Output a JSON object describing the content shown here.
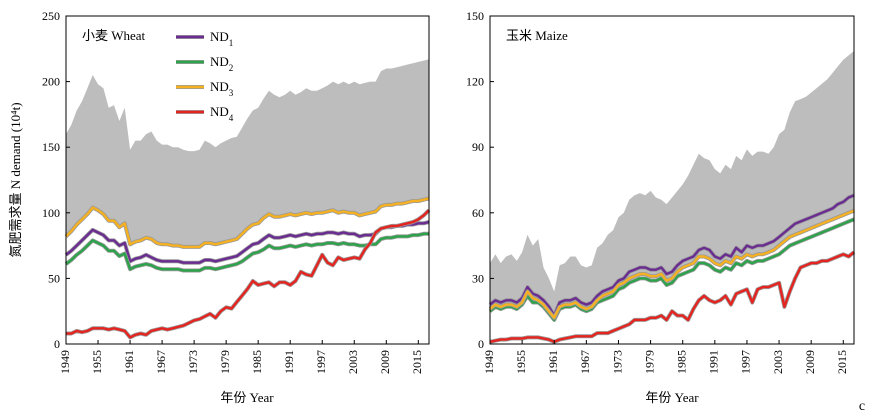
{
  "figure": {
    "corner_label": "c"
  },
  "chart_data": [
    {
      "type": "area",
      "title": "小麦 Wheat",
      "xlabel": "年份 Year",
      "ylabel": "氮肥需求量 N demand (10⁴t)",
      "ylim": [
        0,
        250
      ],
      "yticks": [
        0,
        50,
        100,
        150,
        200,
        250
      ],
      "xlim": [
        1949,
        2017
      ],
      "xticks": [
        1949,
        1955,
        1961,
        1967,
        1973,
        1979,
        1985,
        1991,
        1997,
        2003,
        2009,
        2015
      ],
      "grid": false,
      "legend": {
        "placement": "top-center",
        "entries": [
          "ND1",
          "ND2",
          "ND3",
          "ND4"
        ]
      },
      "band": {
        "color": "#bdbdbd",
        "lower_series": "ND3",
        "x": [
          1949,
          1950,
          1951,
          1952,
          1953,
          1954,
          1955,
          1956,
          1957,
          1958,
          1959,
          1960,
          1961,
          1962,
          1963,
          1964,
          1965,
          1966,
          1967,
          1968,
          1969,
          1970,
          1971,
          1972,
          1973,
          1974,
          1975,
          1976,
          1977,
          1978,
          1979,
          1980,
          1981,
          1982,
          1983,
          1984,
          1985,
          1986,
          1987,
          1988,
          1989,
          1990,
          1991,
          1992,
          1993,
          1994,
          1995,
          1996,
          1997,
          1998,
          1999,
          2000,
          2001,
          2002,
          2003,
          2004,
          2005,
          2006,
          2007,
          2008,
          2009,
          2010,
          2011,
          2012,
          2013,
          2014,
          2015,
          2016,
          2017
        ],
        "upper": [
          160,
          167,
          178,
          185,
          195,
          205,
          198,
          195,
          180,
          182,
          170,
          180,
          148,
          155,
          155,
          160,
          162,
          155,
          152,
          152,
          150,
          150,
          148,
          147,
          147,
          148,
          155,
          153,
          150,
          153,
          155,
          157,
          158,
          165,
          172,
          178,
          180,
          187,
          193,
          190,
          188,
          190,
          193,
          190,
          192,
          195,
          193,
          193,
          195,
          197,
          200,
          198,
          200,
          198,
          200,
          198,
          199,
          200,
          200,
          208,
          210,
          210,
          211,
          212,
          213,
          214,
          215,
          216,
          217
        ]
      },
      "series": [
        {
          "name": "ND1",
          "color": "#6a2c91",
          "values": [
            68,
            71,
            75,
            79,
            83,
            87,
            85,
            83,
            79,
            79,
            75,
            77,
            63,
            65,
            66,
            68,
            66,
            64,
            63,
            63,
            63,
            63,
            62,
            62,
            62,
            62,
            64,
            64,
            63,
            64,
            65,
            66,
            67,
            70,
            73,
            76,
            77,
            80,
            83,
            81,
            81,
            82,
            83,
            82,
            83,
            84,
            83,
            84,
            84,
            85,
            85,
            84,
            85,
            84,
            84,
            82,
            83,
            83,
            84,
            88,
            89,
            89,
            90,
            90,
            91,
            91,
            92,
            92,
            93
          ]
        },
        {
          "name": "ND2",
          "color": "#2ca24a",
          "values": [
            61,
            64,
            68,
            71,
            75,
            79,
            77,
            75,
            71,
            71,
            67,
            69,
            57,
            59,
            60,
            61,
            60,
            58,
            57,
            57,
            57,
            57,
            56,
            56,
            56,
            56,
            58,
            58,
            57,
            58,
            59,
            60,
            61,
            63,
            66,
            69,
            70,
            72,
            75,
            73,
            73,
            74,
            75,
            74,
            75,
            76,
            75,
            76,
            76,
            77,
            77,
            76,
            77,
            76,
            76,
            75,
            75,
            76,
            76,
            80,
            81,
            81,
            82,
            82,
            82,
            83,
            83,
            84,
            84
          ]
        },
        {
          "name": "ND3",
          "color": "#f5b121",
          "values": [
            82,
            86,
            91,
            95,
            99,
            104,
            102,
            99,
            94,
            94,
            89,
            92,
            76,
            78,
            79,
            81,
            80,
            77,
            76,
            76,
            75,
            75,
            74,
            74,
            74,
            74,
            77,
            77,
            76,
            77,
            78,
            79,
            80,
            84,
            88,
            91,
            92,
            96,
            99,
            97,
            97,
            98,
            99,
            98,
            99,
            100,
            99,
            100,
            100,
            101,
            102,
            100,
            101,
            100,
            100,
            98,
            99,
            100,
            101,
            105,
            106,
            106,
            107,
            107,
            108,
            109,
            109,
            110,
            111
          ]
        },
        {
          "name": "ND4",
          "color": "#e52420",
          "values": [
            8,
            8,
            10,
            9,
            10,
            12,
            12,
            12,
            11,
            12,
            11,
            10,
            5,
            7,
            8,
            7,
            10,
            11,
            12,
            11,
            12,
            13,
            14,
            16,
            18,
            19,
            21,
            23,
            20,
            25,
            28,
            27,
            32,
            37,
            42,
            48,
            45,
            46,
            47,
            44,
            47,
            47,
            45,
            48,
            55,
            53,
            52,
            60,
            68,
            62,
            60,
            66,
            64,
            65,
            66,
            65,
            72,
            77,
            85,
            88,
            89,
            90,
            90,
            91,
            92,
            93,
            95,
            98,
            102
          ]
        }
      ]
    },
    {
      "type": "area",
      "title": "玉米 Maize",
      "xlabel": "年份 Year",
      "ylabel": "",
      "ylim": [
        0,
        150
      ],
      "yticks": [
        0,
        30,
        60,
        90,
        120,
        150
      ],
      "xlim": [
        1949,
        2017
      ],
      "xticks": [
        1949,
        1955,
        1961,
        1967,
        1973,
        1979,
        1985,
        1991,
        1997,
        2003,
        2009,
        2015
      ],
      "grid": false,
      "legend": {
        "placement": "none",
        "entries": []
      },
      "band": {
        "color": "#bdbdbd",
        "lower_series": "ND3",
        "x": [
          1949,
          1950,
          1951,
          1952,
          1953,
          1954,
          1955,
          1956,
          1957,
          1958,
          1959,
          1960,
          1961,
          1962,
          1963,
          1964,
          1965,
          1966,
          1967,
          1968,
          1969,
          1970,
          1971,
          1972,
          1973,
          1974,
          1975,
          1976,
          1977,
          1978,
          1979,
          1980,
          1981,
          1982,
          1983,
          1984,
          1985,
          1986,
          1987,
          1988,
          1989,
          1990,
          1991,
          1992,
          1993,
          1994,
          1995,
          1996,
          1997,
          1998,
          1999,
          2000,
          2001,
          2002,
          2003,
          2004,
          2005,
          2006,
          2007,
          2008,
          2009,
          2010,
          2011,
          2012,
          2013,
          2014,
          2015,
          2016,
          2017
        ],
        "upper": [
          37,
          41,
          37,
          40,
          41,
          38,
          42,
          50,
          45,
          48,
          35,
          30,
          24,
          36,
          37,
          40,
          40,
          36,
          35,
          36,
          44,
          46,
          50,
          52,
          58,
          60,
          66,
          68,
          69,
          68,
          70,
          67,
          66,
          64,
          67,
          70,
          73,
          77,
          82,
          87,
          85,
          84,
          80,
          78,
          82,
          80,
          86,
          84,
          89,
          86,
          88,
          88,
          87,
          90,
          96,
          98,
          106,
          111,
          112,
          113,
          115,
          117,
          119,
          121,
          124,
          127,
          130,
          132,
          134
        ]
      },
      "series": [
        {
          "name": "ND1",
          "color": "#6a2c91",
          "values": [
            18,
            20,
            19,
            20,
            20,
            19,
            21,
            26,
            23,
            22,
            20,
            17,
            13,
            19,
            20,
            20,
            21,
            19,
            18,
            19,
            22,
            24,
            25,
            26,
            29,
            30,
            33,
            34,
            35,
            35,
            34,
            34,
            35,
            32,
            33,
            36,
            38,
            39,
            40,
            43,
            44,
            43,
            40,
            39,
            41,
            40,
            44,
            42,
            45,
            44,
            45,
            45,
            46,
            47,
            49,
            51,
            53,
            55,
            56,
            57,
            58,
            59,
            60,
            61,
            62,
            64,
            65,
            67,
            68
          ]
        },
        {
          "name": "ND2",
          "color": "#2ca24a",
          "values": [
            15,
            17,
            16,
            17,
            17,
            16,
            18,
            22,
            19,
            19,
            17,
            14,
            11,
            16,
            17,
            17,
            18,
            16,
            15,
            16,
            19,
            20,
            21,
            22,
            25,
            26,
            28,
            29,
            30,
            30,
            29,
            29,
            30,
            27,
            28,
            31,
            32,
            33,
            34,
            37,
            37,
            36,
            34,
            33,
            35,
            34,
            37,
            36,
            38,
            37,
            38,
            38,
            39,
            40,
            41,
            43,
            45,
            46,
            47,
            48,
            49,
            50,
            51,
            52,
            53,
            54,
            55,
            56,
            57
          ]
        },
        {
          "name": "ND3",
          "color": "#f5b121",
          "values": [
            16,
            18,
            17,
            18,
            18,
            17,
            19,
            24,
            21,
            20,
            18,
            15,
            12,
            17,
            18,
            18,
            19,
            17,
            16,
            17,
            20,
            22,
            23,
            24,
            27,
            28,
            30,
            31,
            32,
            32,
            31,
            31,
            32,
            29,
            30,
            33,
            35,
            36,
            37,
            40,
            40,
            39,
            37,
            36,
            38,
            37,
            40,
            39,
            41,
            40,
            41,
            41,
            42,
            43,
            45,
            47,
            49,
            50,
            51,
            52,
            53,
            54,
            55,
            56,
            57,
            58,
            59,
            60,
            61
          ]
        },
        {
          "name": "ND4",
          "color": "#e52420",
          "values": [
            1,
            1.5,
            2,
            2,
            2.5,
            2.5,
            2.5,
            3,
            3,
            3,
            2.5,
            2,
            1,
            2,
            2.5,
            3,
            3.5,
            3.5,
            3.5,
            3.5,
            5,
            5,
            5,
            6,
            7,
            8,
            9,
            11,
            11,
            11,
            12,
            12,
            13,
            11,
            15,
            13,
            13,
            11,
            16,
            20,
            22,
            20,
            19,
            20,
            22,
            18,
            23,
            24,
            25,
            19,
            25,
            26,
            26,
            27,
            28,
            17,
            24,
            30,
            35,
            36,
            37,
            37,
            38,
            38,
            39,
            40,
            41,
            40,
            42
          ]
        }
      ]
    }
  ]
}
